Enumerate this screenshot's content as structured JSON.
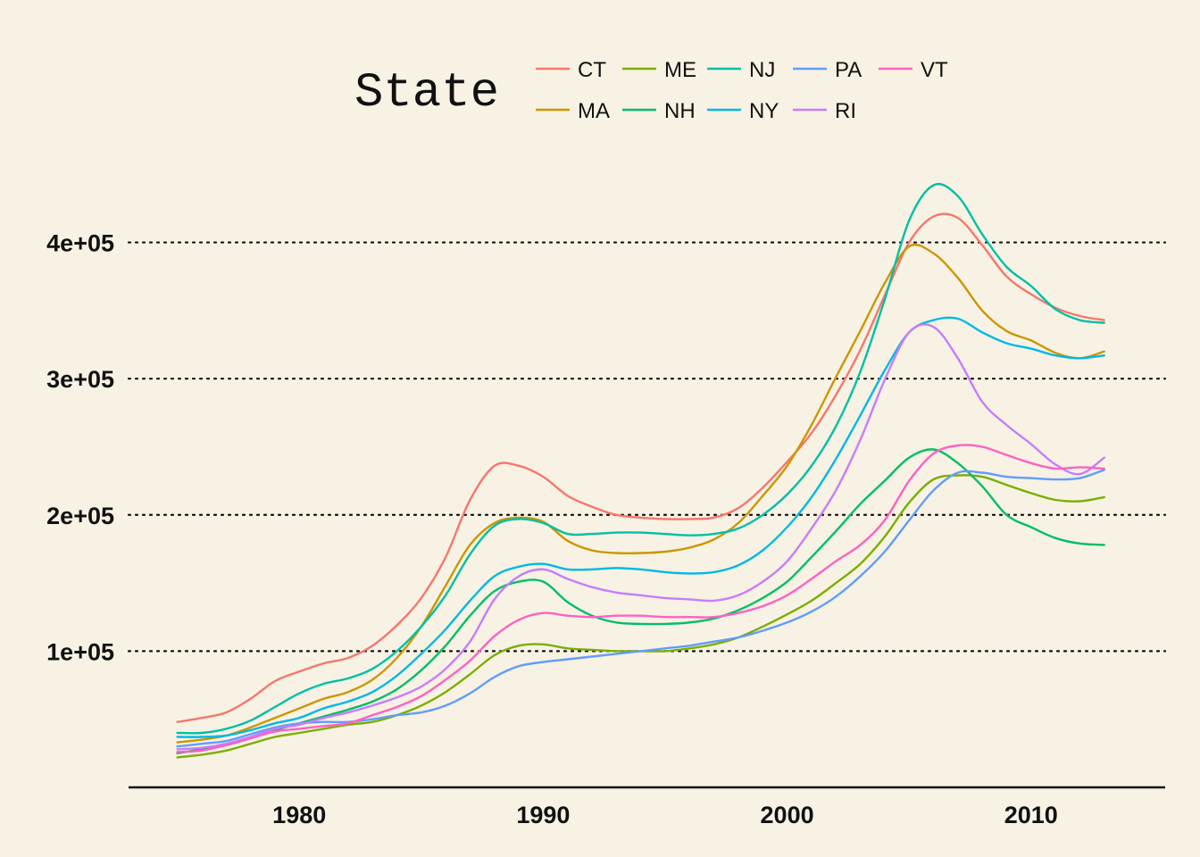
{
  "chart_data": {
    "type": "line",
    "title": "",
    "xlabel": "",
    "ylabel": "",
    "xlim": [
      1973,
      2015.5
    ],
    "ylim": [
      0,
      460000
    ],
    "x_ticks": [
      1980,
      1990,
      2000,
      2010
    ],
    "x_tick_labels": [
      "1980",
      "1990",
      "2000",
      "2010"
    ],
    "y_ticks": [
      100000,
      200000,
      300000,
      400000
    ],
    "y_tick_labels": [
      "1e+05",
      "2e+05",
      "3e+05",
      "4e+05"
    ],
    "grid": "horizontal dotted",
    "legend": {
      "title": "State",
      "position": "top"
    },
    "x": [
      1975,
      1976,
      1977,
      1978,
      1979,
      1980,
      1981,
      1982,
      1983,
      1984,
      1985,
      1986,
      1987,
      1988,
      1989,
      1990,
      1991,
      1992,
      1993,
      1994,
      1995,
      1996,
      1997,
      1998,
      1999,
      2000,
      2001,
      2002,
      2003,
      2004,
      2005,
      2006,
      2007,
      2008,
      2009,
      2010,
      2011,
      2012,
      2013
    ],
    "series": [
      {
        "name": "CT",
        "color": "#F8766D",
        "values": [
          48000,
          51000,
          55000,
          65000,
          78000,
          85000,
          91000,
          95000,
          104000,
          119000,
          139000,
          169000,
          211000,
          236000,
          236000,
          228000,
          214000,
          206000,
          200000,
          198000,
          197000,
          197000,
          198000,
          205000,
          220000,
          239000,
          260000,
          288000,
          321000,
          361000,
          400000,
          419000,
          418000,
          398000,
          375000,
          362000,
          352000,
          346000,
          343000
        ]
      },
      {
        "name": "MA",
        "color": "#CD9600",
        "values": [
          33000,
          35000,
          38000,
          44000,
          51000,
          58000,
          65000,
          70000,
          79000,
          95000,
          118000,
          148000,
          178000,
          194000,
          198000,
          195000,
          181000,
          174000,
          172000,
          172000,
          173000,
          176000,
          182000,
          194000,
          214000,
          236000,
          266000,
          301000,
          335000,
          370000,
          397000,
          392000,
          374000,
          350000,
          335000,
          328000,
          319000,
          315000,
          320000
        ]
      },
      {
        "name": "ME",
        "color": "#7CAE00",
        "values": [
          22000,
          24000,
          27000,
          32000,
          37000,
          40000,
          43000,
          46000,
          48000,
          53000,
          60000,
          70000,
          83000,
          97000,
          104000,
          105000,
          102000,
          101000,
          100000,
          100000,
          100000,
          102000,
          105000,
          110000,
          118000,
          127000,
          137000,
          150000,
          164000,
          184000,
          209000,
          226000,
          229000,
          228000,
          222000,
          216000,
          211000,
          210000,
          213000
        ]
      },
      {
        "name": "NH",
        "color": "#00BE67",
        "values": [
          25000,
          28000,
          31000,
          36000,
          42000,
          47000,
          52000,
          57000,
          63000,
          72000,
          86000,
          104000,
          126000,
          144000,
          151000,
          151000,
          136000,
          126000,
          121000,
          120000,
          120000,
          121000,
          124000,
          130000,
          139000,
          151000,
          169000,
          188000,
          208000,
          225000,
          242000,
          248000,
          238000,
          221000,
          200000,
          191000,
          183000,
          179000,
          178000
        ]
      },
      {
        "name": "NJ",
        "color": "#00BFA5",
        "values": [
          40000,
          40000,
          43000,
          49000,
          59000,
          69000,
          76000,
          80000,
          87000,
          100000,
          118000,
          141000,
          171000,
          192000,
          197000,
          194000,
          186000,
          186000,
          187000,
          187000,
          186000,
          185000,
          186000,
          190000,
          200000,
          215000,
          236000,
          265000,
          305000,
          358000,
          416000,
          442000,
          434000,
          406000,
          382000,
          368000,
          351000,
          343000,
          341000
        ]
      },
      {
        "name": "NY",
        "color": "#00B8E7",
        "values": [
          37000,
          37000,
          38000,
          42000,
          47000,
          51000,
          58000,
          63000,
          70000,
          82000,
          98000,
          116000,
          137000,
          155000,
          162000,
          164000,
          160000,
          160000,
          161000,
          160000,
          158000,
          157000,
          158000,
          163000,
          174000,
          191000,
          213000,
          241000,
          273000,
          306000,
          334000,
          343000,
          344000,
          334000,
          326000,
          322000,
          317000,
          315000,
          317000
        ]
      },
      {
        "name": "PA",
        "color": "#619CFF",
        "values": [
          30000,
          32000,
          34000,
          39000,
          44000,
          47000,
          48000,
          48000,
          50000,
          53000,
          55000,
          60000,
          69000,
          81000,
          89000,
          92000,
          94000,
          96000,
          98000,
          100000,
          102000,
          104000,
          107000,
          110000,
          115000,
          121000,
          129000,
          140000,
          155000,
          173000,
          196000,
          218000,
          231000,
          231000,
          228000,
          227000,
          226000,
          227000,
          233000
        ]
      },
      {
        "name": "RI",
        "color": "#C77CFF",
        "values": [
          28000,
          29000,
          32000,
          37000,
          43000,
          46000,
          51000,
          55000,
          60000,
          66000,
          74000,
          87000,
          107000,
          138000,
          155000,
          160000,
          153000,
          147000,
          143000,
          141000,
          139000,
          138000,
          137000,
          141000,
          151000,
          166000,
          190000,
          218000,
          255000,
          299000,
          334000,
          338000,
          315000,
          283000,
          266000,
          252000,
          237000,
          230000,
          242000
        ]
      },
      {
        "name": "VT",
        "color": "#FF61C3",
        "values": [
          26000,
          27000,
          31000,
          36000,
          41000,
          43000,
          45000,
          47000,
          53000,
          59000,
          67000,
          79000,
          93000,
          111000,
          123000,
          128000,
          126000,
          125000,
          126000,
          126000,
          125000,
          125000,
          125000,
          128000,
          133000,
          141000,
          153000,
          166000,
          178000,
          196000,
          225000,
          245000,
          251000,
          250000,
          244000,
          238000,
          234000,
          235000,
          234000
        ]
      }
    ]
  }
}
